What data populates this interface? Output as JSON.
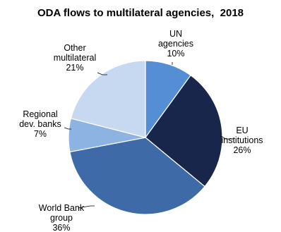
{
  "chart_data": {
    "type": "pie",
    "title": "ODA flows to multilateral agencies,  2018",
    "slices": [
      {
        "label_lines": [
          "UN",
          "agencies"
        ],
        "value_label": "10%",
        "value": 10,
        "color": "#558ed5"
      },
      {
        "label_lines": [
          "EU",
          "institutions"
        ],
        "value_label": "26%",
        "value": 26,
        "color": "#17264a"
      },
      {
        "label_lines": [
          "World Bank",
          "group"
        ],
        "value_label": "36%",
        "value": 36,
        "color": "#3f6aa8"
      },
      {
        "label_lines": [
          "Regional",
          "dev. banks"
        ],
        "value_label": "7%",
        "value": 7,
        "color": "#8db3e2"
      },
      {
        "label_lines": [
          "Other",
          "multilateral"
        ],
        "value_label": "21%",
        "value": 21,
        "color": "#c6d9f1"
      }
    ],
    "start": "12 o'clock",
    "direction": "clockwise",
    "legend": "none"
  }
}
